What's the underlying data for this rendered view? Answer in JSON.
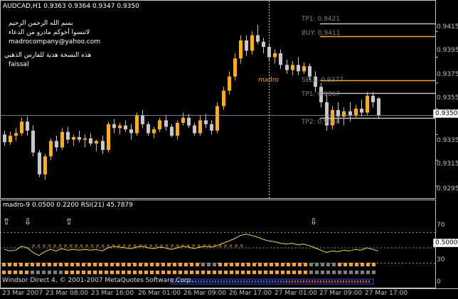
{
  "header": {
    "symbol_info": "AUDCAD,H1  0.9363 0.9364 0.9347 0.9350"
  },
  "notes": [
    "بسم الله الرحمن الرحيم",
    "لاتنسوا أخوكم مادرو من الدعاء",
    "madrocompany@yahoo.com",
    "هذه النسخة هدية للفارس الذهبي",
    "faissal"
  ],
  "levels": {
    "tp1_top": "TP1: 0.9421",
    "buy": "BUY: 0.9411",
    "sell": "SELL: 0.9377",
    "tp1_bottom": "TP1: 0.9367",
    "tp2": "TP2: 0.9348",
    "center_label": "madro"
  },
  "price_axis": {
    "ticks": [
      "0.9415",
      "0.9395",
      "0.9375",
      "0.9355",
      "0.9335",
      "0.9315",
      "0.9295"
    ],
    "current_price": "0.9350"
  },
  "indicator": {
    "title": "madro-9 0.0500 0.2200  RSI(21) 45.7879",
    "levels": [
      "70",
      "0.5000",
      "30",
      "0"
    ],
    "current": "0.5000"
  },
  "time_axis": [
    "23 Mar 2007",
    "23 Mar 08:00",
    "23 Mar 16:00",
    "26 Mar 01:00",
    "26 Mar 09:00",
    "26 Mar 17:00",
    "27 Mar 01:00",
    "27 Mar 09:00",
    "27 Mar 17:00"
  ],
  "footer": {
    "copyright": "Windsor Direct 4, © 2001-2007 MetaQuotes Software Corp."
  },
  "colors": {
    "bull": "#ffb000",
    "bear": "#c8c8c8",
    "level_orange": "#f5a623",
    "level_gray": "#c0c0c0",
    "rsi_line": "#e8e03a",
    "grid": "#ffffff"
  },
  "chart_data": {
    "type": "candlestick",
    "symbol": "AUDCAD",
    "timeframe": "H1",
    "ohlc_last": {
      "open": 0.9363,
      "high": 0.9364,
      "low": 0.9347,
      "close": 0.935
    },
    "candles": [
      [
        0.9335,
        0.9338,
        0.9326,
        0.9329
      ],
      [
        0.9329,
        0.9337,
        0.9327,
        0.9334
      ],
      [
        0.9334,
        0.934,
        0.933,
        0.9336
      ],
      [
        0.9336,
        0.9348,
        0.9334,
        0.9345
      ],
      [
        0.9345,
        0.9349,
        0.9334,
        0.9338
      ],
      [
        0.9338,
        0.9342,
        0.9318,
        0.9321
      ],
      [
        0.9321,
        0.9323,
        0.9302,
        0.9304
      ],
      [
        0.9304,
        0.932,
        0.93,
        0.9318
      ],
      [
        0.9318,
        0.9332,
        0.9315,
        0.933
      ],
      [
        0.933,
        0.9334,
        0.9322,
        0.9325
      ],
      [
        0.9325,
        0.934,
        0.9323,
        0.9337
      ],
      [
        0.9337,
        0.9341,
        0.9328,
        0.9331
      ],
      [
        0.9331,
        0.9335,
        0.9326,
        0.9333
      ],
      [
        0.9333,
        0.9338,
        0.9329,
        0.9331
      ],
      [
        0.9331,
        0.9335,
        0.9325,
        0.9332
      ],
      [
        0.9332,
        0.9336,
        0.9326,
        0.9328
      ],
      [
        0.9328,
        0.9331,
        0.9322,
        0.933
      ],
      [
        0.933,
        0.9334,
        0.932,
        0.9323
      ],
      [
        0.9323,
        0.9345,
        0.9321,
        0.9343
      ],
      [
        0.9343,
        0.9347,
        0.9336,
        0.934
      ],
      [
        0.934,
        0.9344,
        0.9335,
        0.9342
      ],
      [
        0.9342,
        0.9346,
        0.9337,
        0.9339
      ],
      [
        0.9339,
        0.9343,
        0.9331,
        0.9336
      ],
      [
        0.9336,
        0.9352,
        0.9334,
        0.935
      ],
      [
        0.935,
        0.9354,
        0.934,
        0.9343
      ],
      [
        0.9343,
        0.9345,
        0.9334,
        0.9336
      ],
      [
        0.9336,
        0.9341,
        0.9332,
        0.9339
      ],
      [
        0.9339,
        0.9348,
        0.9337,
        0.9346
      ],
      [
        0.9346,
        0.935,
        0.9338,
        0.9341
      ],
      [
        0.9341,
        0.9343,
        0.9333,
        0.9334
      ],
      [
        0.9334,
        0.9346,
        0.9331,
        0.9344
      ],
      [
        0.9344,
        0.9352,
        0.9342,
        0.9348
      ],
      [
        0.9348,
        0.9351,
        0.934,
        0.9342
      ],
      [
        0.9342,
        0.9344,
        0.9334,
        0.9336
      ],
      [
        0.9336,
        0.935,
        0.9334,
        0.9346
      ],
      [
        0.9346,
        0.9351,
        0.934,
        0.9343
      ],
      [
        0.9343,
        0.9346,
        0.9335,
        0.9338
      ],
      [
        0.9338,
        0.936,
        0.9336,
        0.9357
      ],
      [
        0.9357,
        0.9372,
        0.9354,
        0.9369
      ],
      [
        0.9369,
        0.9384,
        0.9366,
        0.938
      ],
      [
        0.938,
        0.9398,
        0.9377,
        0.9394
      ],
      [
        0.9394,
        0.9412,
        0.939,
        0.9408
      ],
      [
        0.9408,
        0.9412,
        0.9396,
        0.94
      ],
      [
        0.94,
        0.9415,
        0.9397,
        0.9412
      ],
      [
        0.9412,
        0.942,
        0.9405,
        0.9407
      ],
      [
        0.9407,
        0.941,
        0.9398,
        0.9403
      ],
      [
        0.9403,
        0.9406,
        0.9392,
        0.9395
      ],
      [
        0.9395,
        0.9401,
        0.939,
        0.9398
      ],
      [
        0.9398,
        0.9401,
        0.9386,
        0.9389
      ],
      [
        0.9389,
        0.9393,
        0.9382,
        0.9385
      ],
      [
        0.9385,
        0.9392,
        0.9381,
        0.9389
      ],
      [
        0.9389,
        0.9395,
        0.9381,
        0.9384
      ],
      [
        0.9384,
        0.9391,
        0.9382,
        0.9388
      ],
      [
        0.9388,
        0.939,
        0.9377,
        0.938
      ],
      [
        0.938,
        0.9384,
        0.9368,
        0.9372
      ],
      [
        0.9372,
        0.9375,
        0.9356,
        0.936
      ],
      [
        0.936,
        0.9366,
        0.9338,
        0.9342
      ],
      [
        0.9342,
        0.9357,
        0.9339,
        0.9354
      ],
      [
        0.9354,
        0.936,
        0.9344,
        0.9349
      ],
      [
        0.9349,
        0.9356,
        0.9342,
        0.9353
      ],
      [
        0.9353,
        0.936,
        0.9345,
        0.935
      ],
      [
        0.935,
        0.9358,
        0.9348,
        0.9355
      ],
      [
        0.9355,
        0.9362,
        0.9349,
        0.9352
      ],
      [
        0.9352,
        0.9368,
        0.935,
        0.9365
      ],
      [
        0.9365,
        0.9368,
        0.9356,
        0.936
      ],
      [
        0.9363,
        0.9364,
        0.9347,
        0.935
      ]
    ],
    "ylim": [
      0.929,
      0.943
    ],
    "horizontal_levels": [
      {
        "label": "TP1: 0.9421",
        "value": 0.9421
      },
      {
        "label": "BUY: 0.9411",
        "value": 0.9411
      },
      {
        "label": "SELL: 0.9377",
        "value": 0.9377
      },
      {
        "label": "TP1: 0.9367",
        "value": 0.9367
      },
      {
        "label": "TP2: 0.9348",
        "value": 0.9348
      }
    ],
    "rsi": {
      "period": 21,
      "last": 45.7879,
      "levels": [
        70,
        50,
        30
      ],
      "values": [
        48,
        46,
        47,
        52,
        50,
        44,
        40,
        45,
        48,
        46,
        49,
        47,
        48,
        47,
        48,
        47,
        48,
        46,
        50,
        52,
        51,
        50,
        49,
        51,
        52,
        50,
        49,
        51,
        50,
        48,
        50,
        52,
        51,
        49,
        51,
        52,
        51,
        53,
        56,
        59,
        62,
        66,
        68,
        66,
        64,
        61,
        59,
        58,
        56,
        55,
        56,
        54,
        55,
        53,
        50,
        47,
        44,
        46,
        45,
        47,
        46,
        48,
        47,
        50,
        48,
        46
      ]
    }
  }
}
